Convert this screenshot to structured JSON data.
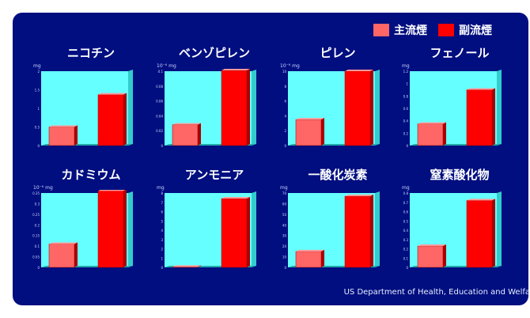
{
  "legend": [
    {
      "label": "主流煙",
      "color": "#ff6666"
    },
    {
      "label": "副流煙",
      "color": "#ff0000"
    }
  ],
  "source": "US Department of Health, Education and Welfa",
  "chart_data": [
    {
      "type": "bar",
      "title": "ニコチン",
      "unit": "mg",
      "categories": [
        "主流煙",
        "副流煙"
      ],
      "values": [
        0.5,
        1.37
      ],
      "ylim": [
        0,
        2
      ],
      "yticks": [
        "0",
        "0.5",
        "1",
        "1.5",
        "2"
      ]
    },
    {
      "type": "bar",
      "title": "ベンゾピレン",
      "unit": "10⁻⁶ mg",
      "categories": [
        "主流煙",
        "副流煙"
      ],
      "values": [
        0.028,
        0.101
      ],
      "ylim": [
        0,
        0.1
      ],
      "yticks": [
        "0",
        "0.02",
        "0.04",
        "0.06",
        "0.08",
        "0.1"
      ]
    },
    {
      "type": "bar",
      "title": "ピレン",
      "unit": "10⁻⁶ mg",
      "categories": [
        "主流煙",
        "副流煙"
      ],
      "values": [
        3.5,
        10.0
      ],
      "ylim": [
        0,
        10
      ],
      "yticks": [
        "0",
        "2",
        "4",
        "6",
        "8",
        "10"
      ]
    },
    {
      "type": "bar",
      "title": "フェノール",
      "unit": "mg",
      "categories": [
        "主流煙",
        "副流煙"
      ],
      "values": [
        0.35,
        0.9
      ],
      "ylim": [
        0,
        1.2
      ],
      "yticks": [
        "0",
        "0.2",
        "0.4",
        "0.6",
        "0.8",
        "1",
        "1.2"
      ]
    },
    {
      "type": "bar",
      "title": "カドミウム",
      "unit": "10⁻⁶ mg",
      "categories": [
        "主流煙",
        "副流煙"
      ],
      "values": [
        0.11,
        0.36
      ],
      "ylim": [
        0,
        0.35
      ],
      "yticks": [
        "0",
        "0.05",
        "0.1",
        "0.15",
        "0.2",
        "0.25",
        "0.3",
        "0.35"
      ]
    },
    {
      "type": "bar",
      "title": "アンモニア",
      "unit": "mg",
      "categories": [
        "主流煙",
        "副流煙"
      ],
      "values": [
        0.05,
        7.4
      ],
      "ylim": [
        0,
        8
      ],
      "yticks": [
        "0",
        "1",
        "2",
        "3",
        "4",
        "5",
        "6",
        "7",
        "8"
      ]
    },
    {
      "type": "bar",
      "title": "一酸化炭素",
      "unit": "mg",
      "categories": [
        "主流煙",
        "副流煙"
      ],
      "values": [
        15,
        67
      ],
      "ylim": [
        0,
        70
      ],
      "yticks": [
        "0",
        "10",
        "20",
        "30",
        "40",
        "50",
        "60",
        "70"
      ]
    },
    {
      "type": "bar",
      "title": "窒素酸化物",
      "unit": "mg",
      "categories": [
        "主流煙",
        "副流煙"
      ],
      "values": [
        0.23,
        0.72
      ],
      "ylim": [
        0,
        0.8
      ],
      "yticks": [
        "0",
        "0.1",
        "0.2",
        "0.3",
        "0.4",
        "0.5",
        "0.6",
        "0.7",
        "0.8"
      ]
    }
  ]
}
